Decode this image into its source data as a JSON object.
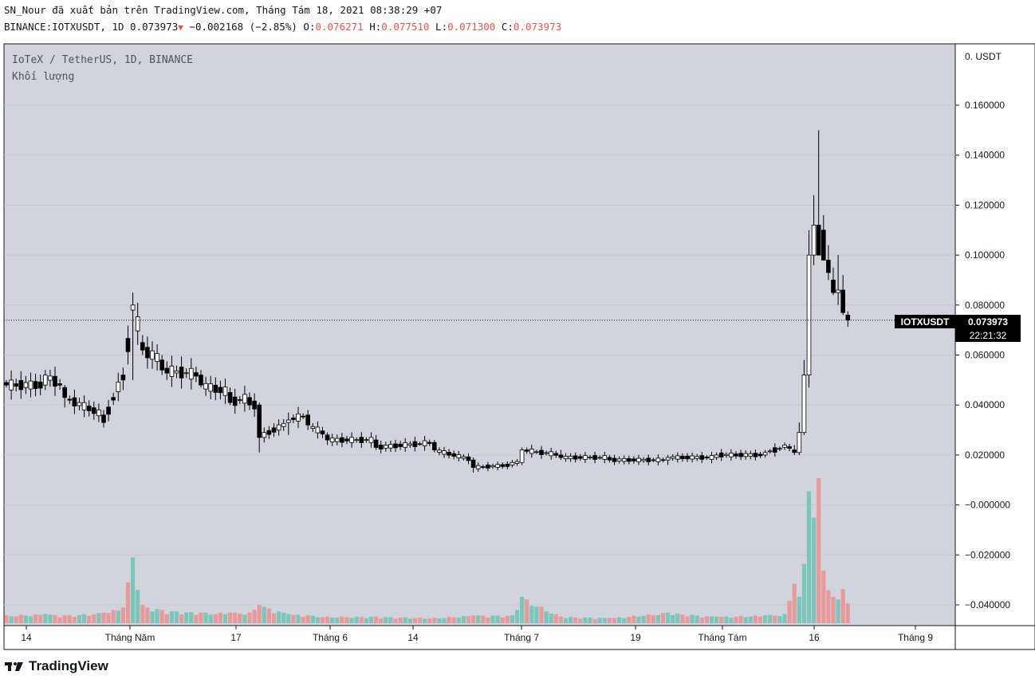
{
  "header": {
    "published_line": "SN_Nour đã xuất bản trên TradingView.com, Tháng Tám 18, 2021 08:38:29 +07",
    "symbol": "BINANCE:IOTXUSDT, 1D",
    "last": "0.073973",
    "change": "−0.002168 (−2.85%)",
    "o_label": "O:",
    "o_value": "0.076271",
    "h_label": "H:",
    "h_value": "0.077510",
    "l_label": "L:",
    "l_value": "0.071300",
    "c_label": "C:",
    "c_value": "0.073973"
  },
  "pane": {
    "title": "IoTeX / TetherUS, 1D, BINANCE",
    "volume_label": "Khối lượng"
  },
  "price_label": {
    "symbol": "IOTXUSDT",
    "value": "0.073973",
    "countdown": "22:21:32"
  },
  "footer": {
    "brand": "TradingView"
  },
  "colors": {
    "background": "#d1d4dc",
    "up_fill": "#ffffff",
    "down_fill": "#000000",
    "volume_up": "#7cc5b9",
    "volume_down": "#e79a9a",
    "grid": "#c4c7cf"
  },
  "chart_data": {
    "type": "candlestick",
    "title": "IoTeX / TetherUS, 1D, BINANCE",
    "y_axis": {
      "unit_label": "0. USDT",
      "ticks": [
        "0.160000",
        "0.140000",
        "0.120000",
        "0.100000",
        "0.080000",
        "0.060000",
        "0.040000",
        "0.020000",
        "−0.000000",
        "−0.020000",
        "−0.040000"
      ],
      "ylim": [
        -0.045,
        0.18
      ]
    },
    "x_axis": {
      "tick_labels": [
        "14",
        "Tháng Năm",
        "17",
        "Tháng 6",
        "14",
        "Tháng 7",
        "19",
        "Tháng Tám",
        "16",
        "Tháng 9"
      ]
    },
    "current_price": 0.073973,
    "anchors": [
      {
        "i": 0,
        "o": 0.049,
        "h": 0.05,
        "l": 0.047,
        "c": 0.048,
        "v": 0.06
      },
      {
        "i": 8,
        "o": 0.048,
        "h": 0.054,
        "l": 0.046,
        "c": 0.052,
        "v": 0.07
      },
      {
        "i": 12,
        "o": 0.047,
        "h": 0.048,
        "l": 0.039,
        "c": 0.043,
        "v": 0.06
      },
      {
        "i": 20,
        "o": 0.036,
        "h": 0.038,
        "l": 0.031,
        "c": 0.033,
        "v": 0.08
      },
      {
        "i": 24,
        "o": 0.052,
        "h": 0.055,
        "l": 0.046,
        "c": 0.05,
        "v": 0.12
      },
      {
        "i": 26,
        "o": 0.078,
        "h": 0.085,
        "l": 0.05,
        "c": 0.08,
        "v": 0.5
      },
      {
        "i": 28,
        "o": 0.065,
        "h": 0.068,
        "l": 0.06,
        "c": 0.062,
        "v": 0.14
      },
      {
        "i": 32,
        "o": 0.058,
        "h": 0.06,
        "l": 0.052,
        "c": 0.054,
        "v": 0.1
      },
      {
        "i": 40,
        "o": 0.052,
        "h": 0.054,
        "l": 0.047,
        "c": 0.048,
        "v": 0.08
      },
      {
        "i": 46,
        "o": 0.045,
        "h": 0.047,
        "l": 0.04,
        "c": 0.041,
        "v": 0.08
      },
      {
        "i": 50,
        "o": 0.043,
        "h": 0.045,
        "l": 0.038,
        "c": 0.04,
        "v": 0.08
      },
      {
        "i": 52,
        "o": 0.04,
        "h": 0.041,
        "l": 0.021,
        "c": 0.027,
        "v": 0.14
      },
      {
        "i": 58,
        "o": 0.033,
        "h": 0.037,
        "l": 0.028,
        "c": 0.034,
        "v": 0.07
      },
      {
        "i": 62,
        "o": 0.036,
        "h": 0.038,
        "l": 0.03,
        "c": 0.032,
        "v": 0.06
      },
      {
        "i": 66,
        "o": 0.028,
        "h": 0.029,
        "l": 0.024,
        "c": 0.026,
        "v": 0.05
      },
      {
        "i": 76,
        "o": 0.026,
        "h": 0.028,
        "l": 0.022,
        "c": 0.023,
        "v": 0.05
      },
      {
        "i": 88,
        "o": 0.025,
        "h": 0.026,
        "l": 0.021,
        "c": 0.022,
        "v": 0.04
      },
      {
        "i": 96,
        "o": 0.018,
        "h": 0.019,
        "l": 0.013,
        "c": 0.015,
        "v": 0.06
      },
      {
        "i": 104,
        "o": 0.016,
        "h": 0.018,
        "l": 0.015,
        "c": 0.017,
        "v": 0.06
      },
      {
        "i": 106,
        "o": 0.017,
        "h": 0.023,
        "l": 0.016,
        "c": 0.022,
        "v": 0.2
      },
      {
        "i": 114,
        "o": 0.02,
        "h": 0.022,
        "l": 0.018,
        "c": 0.019,
        "v": 0.05
      },
      {
        "i": 124,
        "o": 0.019,
        "h": 0.02,
        "l": 0.017,
        "c": 0.018,
        "v": 0.04
      },
      {
        "i": 136,
        "o": 0.018,
        "h": 0.02,
        "l": 0.016,
        "c": 0.019,
        "v": 0.08
      },
      {
        "i": 146,
        "o": 0.019,
        "h": 0.021,
        "l": 0.018,
        "c": 0.02,
        "v": 0.05
      },
      {
        "i": 156,
        "o": 0.02,
        "h": 0.022,
        "l": 0.019,
        "c": 0.021,
        "v": 0.06
      },
      {
        "i": 160,
        "o": 0.023,
        "h": 0.025,
        "l": 0.022,
        "c": 0.024,
        "v": 0.07
      },
      {
        "i": 162,
        "o": 0.022,
        "h": 0.024,
        "l": 0.02,
        "c": 0.021,
        "v": 0.3
      },
      {
        "i": 163,
        "o": 0.021,
        "h": 0.033,
        "l": 0.02,
        "c": 0.029,
        "v": 0.2
      },
      {
        "i": 164,
        "o": 0.029,
        "h": 0.058,
        "l": 0.028,
        "c": 0.052,
        "v": 0.45
      },
      {
        "i": 165,
        "o": 0.052,
        "h": 0.11,
        "l": 0.047,
        "c": 0.1,
        "v": 1.0
      },
      {
        "i": 166,
        "o": 0.1,
        "h": 0.124,
        "l": 0.096,
        "c": 0.112,
        "v": 0.8
      },
      {
        "i": 167,
        "o": 0.112,
        "h": 0.15,
        "l": 0.1,
        "c": 0.1,
        "v": 1.1
      },
      {
        "i": 168,
        "o": 0.11,
        "h": 0.116,
        "l": 0.098,
        "c": 0.098,
        "v": 0.4
      },
      {
        "i": 169,
        "o": 0.098,
        "h": 0.104,
        "l": 0.09,
        "c": 0.093,
        "v": 0.25
      },
      {
        "i": 170,
        "o": 0.09,
        "h": 0.095,
        "l": 0.084,
        "c": 0.085,
        "v": 0.2
      },
      {
        "i": 171,
        "o": 0.085,
        "h": 0.1,
        "l": 0.08,
        "c": 0.086,
        "v": 0.18
      },
      {
        "i": 172,
        "o": 0.086,
        "h": 0.092,
        "l": 0.076,
        "c": 0.077,
        "v": 0.26
      },
      {
        "i": 173,
        "o": 0.076,
        "h": 0.0775,
        "l": 0.0713,
        "c": 0.074,
        "v": 0.15
      }
    ]
  }
}
